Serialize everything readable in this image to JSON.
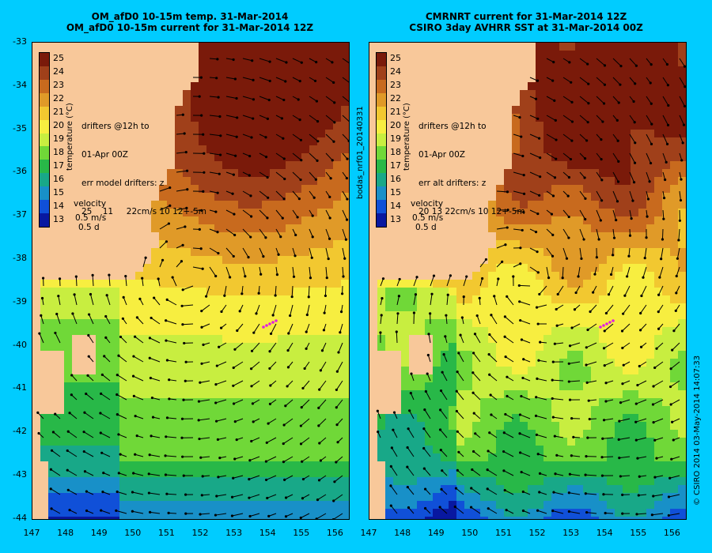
{
  "left_panel": {
    "title_line1": "OM_afD0 10-15m temp. 31-Mar-2014",
    "title_line2": "OM_afD0 10-15m current for 31-Mar-2014 12Z",
    "info_lines": [
      "drifters @12h to",
      "01-Apr 00Z",
      "err model drifters: z",
      "25    11     22cm/s 10 12+-5m"
    ]
  },
  "right_panel": {
    "title_line1": "CMRNRT current for 31-Mar-2014 12Z",
    "title_line2": "CSIRO 3day AVHRR SST at 31-Mar-2014 00Z",
    "info_lines": [
      "drifters @12h to",
      "01-Apr 00Z",
      "err alt drifters: z",
      "20 13 22cm/s 10 12+-5m"
    ]
  },
  "colorbar": {
    "title": "temperature (°C)",
    "labels": [
      "25",
      "24",
      "23",
      "22",
      "21",
      "20",
      "19",
      "18",
      "17",
      "16",
      "15",
      "14",
      "13"
    ],
    "colors": [
      "#7a1a0a",
      "#a0401a",
      "#c86a1e",
      "#e09a28",
      "#f2c830",
      "#f7ee40",
      "#c8ee40",
      "#70d838",
      "#28b848",
      "#18a888",
      "#1890c8",
      "#1050d8",
      "#0818a0"
    ]
  },
  "velocity_legend": {
    "label": "velocity",
    "speed": "0.5 m/s",
    "duration": "0.5 d"
  },
  "axes": {
    "x_ticks": [
      "147",
      "148",
      "149",
      "150",
      "151",
      "152",
      "153",
      "154",
      "155",
      "156"
    ],
    "y_ticks": [
      "-33",
      "-34",
      "-35",
      "-36",
      "-37",
      "-38",
      "-39",
      "-40",
      "-41",
      "-42",
      "-43",
      "-44"
    ]
  },
  "side_text": {
    "middle": "bodas_nrf01_20140331",
    "right": "© CSIRO 2014  03-May-2014 14:07:33"
  }
}
